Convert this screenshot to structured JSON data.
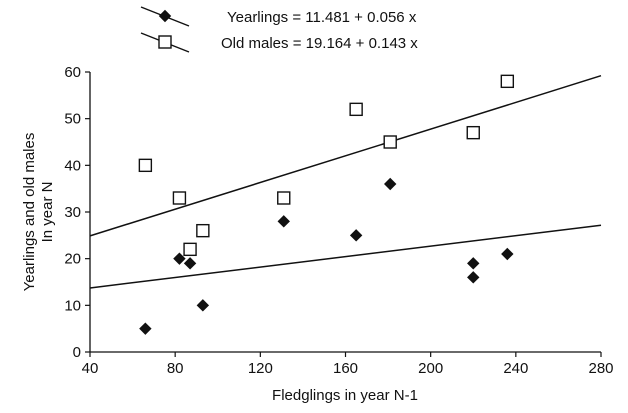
{
  "chart_data": {
    "type": "scatter",
    "title": "",
    "xlabel": "Fledglings in year N-1",
    "ylabel_lines": [
      "Yearlings and old males",
      "In year N"
    ],
    "xlim": [
      40,
      280
    ],
    "ylim": [
      0,
      60
    ],
    "x_ticks": [
      40,
      80,
      120,
      160,
      200,
      240,
      280
    ],
    "y_ticks": [
      0,
      10,
      20,
      30,
      40,
      50,
      60
    ],
    "grid": false,
    "legend_position": "top-center",
    "series": [
      {
        "name": "Yearlings",
        "legend_label": "Yearlings = 11.481 + 0.056 x",
        "marker": "filled-diamond",
        "color": "#111111",
        "intercept": 11.481,
        "slope": 0.056,
        "points": [
          {
            "x": 66,
            "y": 5
          },
          {
            "x": 82,
            "y": 20
          },
          {
            "x": 87,
            "y": 19
          },
          {
            "x": 93,
            "y": 10
          },
          {
            "x": 131,
            "y": 28
          },
          {
            "x": 165,
            "y": 25
          },
          {
            "x": 181,
            "y": 36
          },
          {
            "x": 220,
            "y": 19
          },
          {
            "x": 220,
            "y": 16
          },
          {
            "x": 236,
            "y": 21
          }
        ]
      },
      {
        "name": "Old males",
        "legend_label": "Old males = 19.164 + 0.143 x",
        "marker": "open-square",
        "color": "#111111",
        "intercept": 19.164,
        "slope": 0.143,
        "points": [
          {
            "x": 66,
            "y": 40
          },
          {
            "x": 82,
            "y": 33
          },
          {
            "x": 87,
            "y": 22
          },
          {
            "x": 93,
            "y": 26
          },
          {
            "x": 131,
            "y": 33
          },
          {
            "x": 165,
            "y": 52
          },
          {
            "x": 181,
            "y": 45
          },
          {
            "x": 220,
            "y": 47
          },
          {
            "x": 236,
            "y": 58
          }
        ]
      }
    ]
  }
}
